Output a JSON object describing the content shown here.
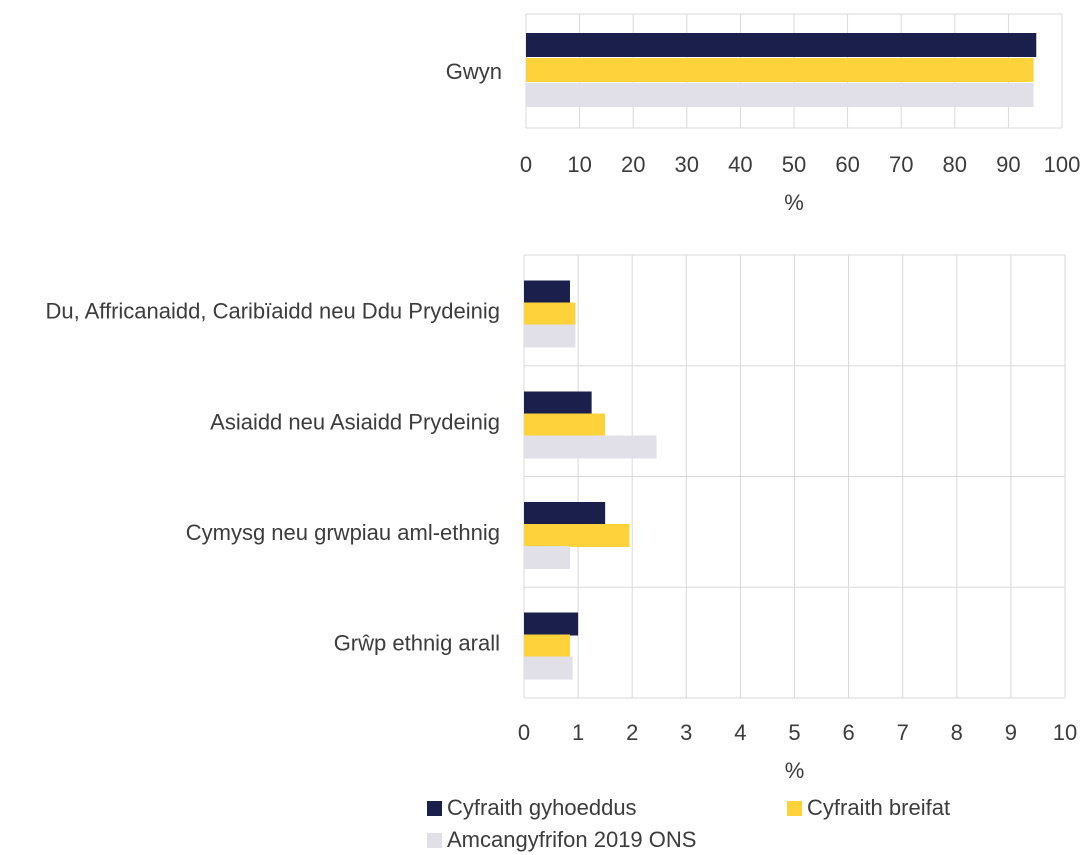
{
  "chart_data": [
    {
      "type": "bar",
      "orientation": "horizontal",
      "categories": [
        "Gwyn"
      ],
      "series": [
        {
          "name": "Cyfraith gyhoeddus",
          "color": "#1b1f4b",
          "values": [
            95.2
          ]
        },
        {
          "name": "Cyfraith breifat",
          "color": "#fdd23a",
          "values": [
            94.7
          ]
        },
        {
          "name": "Amcangyfrifon 2019 ONS",
          "color": "#e1e0e8",
          "values": [
            94.7
          ]
        }
      ],
      "xlim": [
        0,
        100
      ],
      "xticks": [
        "0",
        "10",
        "20",
        "30",
        "40",
        "50",
        "60",
        "70",
        "80",
        "90",
        "100"
      ],
      "xlabel": "%",
      "grid": true
    },
    {
      "type": "bar",
      "orientation": "horizontal",
      "categories": [
        "Du, Affricanaidd, Caribïaidd neu Ddu Prydeinig",
        "Asiaidd neu Asiaidd Prydeinig",
        "Cymysg neu grwpiau aml-ethnig",
        "Grŵp ethnig arall"
      ],
      "series": [
        {
          "name": "Cyfraith gyhoeddus",
          "color": "#1b1f4b",
          "values": [
            0.85,
            1.25,
            1.5,
            1.0
          ]
        },
        {
          "name": "Cyfraith breifat",
          "color": "#fdd23a",
          "values": [
            0.95,
            1.5,
            1.95,
            0.85
          ]
        },
        {
          "name": "Amcangyfrifon 2019 ONS",
          "color": "#e1e0e8",
          "values": [
            0.95,
            2.45,
            0.85,
            0.9
          ]
        }
      ],
      "xlim": [
        0,
        10
      ],
      "xticks": [
        "0",
        "1",
        "2",
        "3",
        "4",
        "5",
        "6",
        "7",
        "8",
        "9",
        "10"
      ],
      "xlabel": "%",
      "grid": true
    }
  ],
  "legend": [
    {
      "label": "Cyfraith gyhoeddus",
      "color": "#1b1f4b"
    },
    {
      "label": "Cyfraith breifat",
      "color": "#fdd23a"
    },
    {
      "label": "Amcangyfrifon 2019 ONS",
      "color": "#e1e0e8"
    }
  ]
}
